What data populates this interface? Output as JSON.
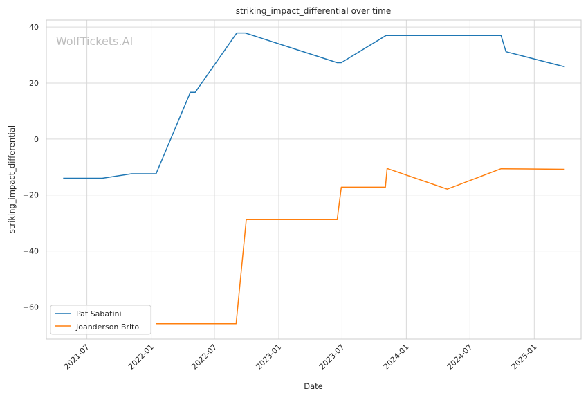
{
  "watermark": "WolfTickets.AI",
  "chart_data": {
    "type": "line",
    "title": "striking_impact_differential over time",
    "xlabel": "Date",
    "ylabel": "striking_impact_differential",
    "x_ticks": [
      "2021-07",
      "2022-01",
      "2022-07",
      "2023-01",
      "2023-07",
      "2024-01",
      "2024-07",
      "2025-01"
    ],
    "y_ticks": [
      40,
      20,
      0,
      -20,
      -40,
      -60
    ],
    "ylim": [
      -71.5,
      42.5
    ],
    "xlim": [
      "2021-03-07",
      "2025-05-15"
    ],
    "grid": true,
    "legend_position": "bottom-left",
    "series": [
      {
        "name": "Pat Sabatini",
        "color": "#1f77b4",
        "points": [
          [
            "2021-04-24",
            -14.0
          ],
          [
            "2021-08-14",
            -14.0
          ],
          [
            "2021-11-06",
            -12.4
          ],
          [
            "2022-01-15",
            -12.4
          ],
          [
            "2022-04-23",
            16.7
          ],
          [
            "2022-05-07",
            16.7
          ],
          [
            "2022-09-03",
            37.9
          ],
          [
            "2022-09-27",
            37.9
          ],
          [
            "2023-06-17",
            27.3
          ],
          [
            "2023-06-29",
            27.3
          ],
          [
            "2023-11-04",
            37.0
          ],
          [
            "2024-09-28",
            37.0
          ],
          [
            "2024-10-12",
            31.2
          ],
          [
            "2025-03-29",
            25.8
          ]
        ]
      },
      {
        "name": "Joanderson Brito",
        "color": "#ff7f0e",
        "points": [
          [
            "2022-01-15",
            -66.0
          ],
          [
            "2022-09-01",
            -66.0
          ],
          [
            "2022-09-30",
            -28.8
          ],
          [
            "2023-06-17",
            -28.8
          ],
          [
            "2023-06-29",
            -17.2
          ],
          [
            "2023-11-02",
            -17.2
          ],
          [
            "2023-11-07",
            -10.5
          ],
          [
            "2024-04-27",
            -17.9
          ],
          [
            "2024-09-28",
            -10.6
          ],
          [
            "2025-03-29",
            -10.8
          ]
        ]
      }
    ]
  }
}
